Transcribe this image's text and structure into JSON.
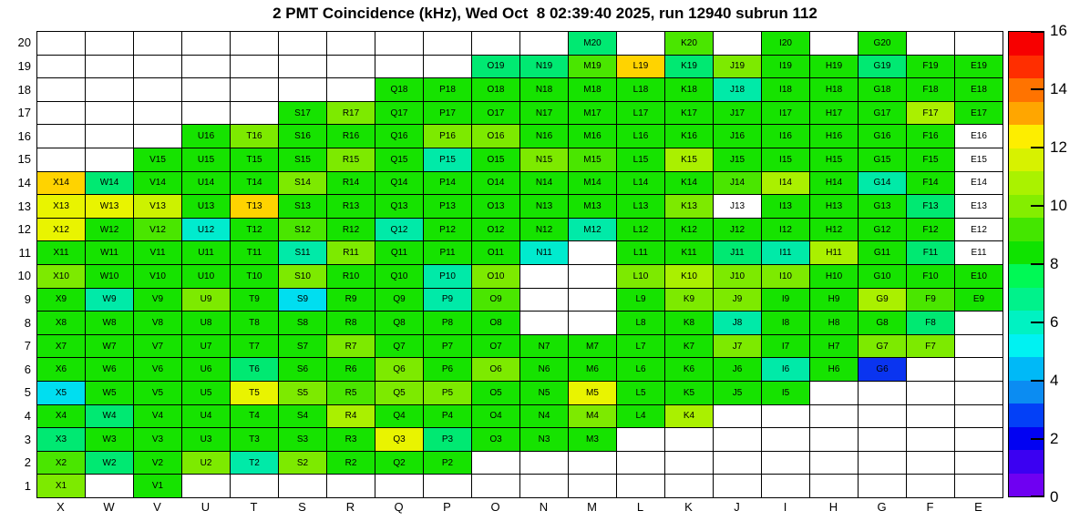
{
  "title": "2 PMT Coincidence (kHz), Wed Oct  8 02:39:40 2025, run 12940 subrun 112",
  "chart_data": {
    "type": "heatmap",
    "title": "2 PMT Coincidence (kHz), Wed Oct  8 02:39:40 2025, run 12940 subrun 112",
    "xlabel": "",
    "ylabel": "",
    "columns": [
      "X",
      "W",
      "V",
      "U",
      "T",
      "S",
      "R",
      "Q",
      "P",
      "O",
      "N",
      "M",
      "L",
      "K",
      "J",
      "I",
      "H",
      "G",
      "F",
      "E"
    ],
    "rows": [
      20,
      19,
      18,
      17,
      16,
      15,
      14,
      13,
      12,
      11,
      10,
      9,
      8,
      7,
      6,
      5,
      4,
      3,
      2,
      1
    ],
    "colors": {
      "g": "#16e300",
      "g2": "#4ae600",
      "yg": "#7dea00",
      "li": "#aaf000",
      "py": "#ccf200",
      "y": "#e9f400",
      "gold": "#ffd300",
      "sp": "#00e972",
      "aq": "#00eaa8",
      "aq2": "#00ebce",
      "cy": "#00def0",
      "bl": "#0a34f0",
      "z": "#ffffff"
    },
    "approx_value_kHz": {
      "g": 8.4,
      "g2": 9.2,
      "yg": 10.0,
      "li": 10.8,
      "py": 11.4,
      "y": 12.2,
      "gold": 13.0,
      "sp": 7.0,
      "aq": 6.2,
      "aq2": 5.6,
      "cy": 5.2,
      "bl": 2.8,
      "z": 0
    },
    "grid": {
      "20": {
        "M": "sp",
        "K": "g2",
        "I": "g",
        "G": "g"
      },
      "19": {
        "O": "sp",
        "N": "sp",
        "M": "g2",
        "L": "gold",
        "K": "sp",
        "J": "yg",
        "I": "g",
        "H": "g",
        "G": "sp",
        "F": "g",
        "E": "g"
      },
      "18": {
        "Q": "g",
        "P": "g",
        "O": "g",
        "N": "g",
        "M": "g",
        "L": "g",
        "K": "g",
        "J": "aq",
        "I": "g",
        "H": "g",
        "G": "g",
        "F": "g",
        "E": "g"
      },
      "17": {
        "S": "g",
        "R": "yg",
        "Q": "g",
        "P": "g",
        "O": "g",
        "N": "g",
        "M": "g",
        "L": "g",
        "K": "g",
        "J": "g",
        "I": "g",
        "H": "g",
        "G": "g",
        "F": "li",
        "E": "g"
      },
      "16": {
        "U": "g",
        "T": "yg",
        "S": "g",
        "R": "g",
        "Q": "g",
        "P": "yg",
        "O": "yg",
        "N": "g",
        "M": "g",
        "L": "g",
        "K": "g",
        "J": "g",
        "I": "g",
        "H": "g",
        "G": "g",
        "F": "g",
        "E": "z"
      },
      "15": {
        "V": "g",
        "U": "g",
        "T": "g",
        "S": "g",
        "R": "yg",
        "Q": "g",
        "P": "aq",
        "O": "g",
        "N": "yg",
        "M": "g2",
        "L": "g",
        "K": "li",
        "J": "g",
        "I": "g",
        "H": "g",
        "G": "g",
        "F": "g",
        "E": "z"
      },
      "14": {
        "X": "gold",
        "W": "sp",
        "V": "g",
        "U": "g",
        "T": "g",
        "S": "yg",
        "R": "g",
        "Q": "g",
        "P": "g",
        "O": "g",
        "N": "g",
        "M": "g",
        "L": "g",
        "K": "g",
        "J": "g2",
        "I": "li",
        "H": "g",
        "G": "aq",
        "F": "g",
        "E": "z"
      },
      "13": {
        "X": "y",
        "W": "y",
        "V": "py",
        "U": "g",
        "T": "gold",
        "S": "g",
        "R": "g",
        "Q": "g",
        "P": "g",
        "O": "g",
        "N": "g",
        "M": "g",
        "L": "g",
        "K": "yg",
        "J": "z",
        "I": "g",
        "H": "g",
        "G": "g",
        "F": "sp",
        "E": "z"
      },
      "12": {
        "X": "y",
        "W": "g",
        "V": "g2",
        "U": "aq2",
        "T": "g",
        "S": "g2",
        "R": "g",
        "Q": "aq",
        "P": "g",
        "O": "g",
        "N": "g",
        "M": "aq",
        "L": "g",
        "K": "g",
        "J": "g",
        "I": "g",
        "H": "g",
        "G": "g",
        "F": "g",
        "E": "z"
      },
      "11": {
        "X": "g",
        "W": "g",
        "V": "g",
        "U": "g",
        "T": "g",
        "S": "aq",
        "R": "yg",
        "Q": "g",
        "P": "g",
        "O": "g",
        "N": "aq2",
        "L": "g",
        "K": "g",
        "J": "sp",
        "I": "aq",
        "H": "li",
        "G": "g",
        "F": "sp",
        "E": "z"
      },
      "10": {
        "X": "yg",
        "W": "g",
        "V": "g",
        "U": "g",
        "T": "g",
        "S": "yg",
        "R": "g",
        "Q": "g",
        "P": "aq",
        "O": "yg",
        "L": "yg",
        "K": "li",
        "J": "yg",
        "I": "yg",
        "H": "g",
        "G": "g",
        "F": "g",
        "E": "g"
      },
      "9": {
        "X": "g",
        "W": "aq",
        "V": "g",
        "U": "yg",
        "T": "g",
        "S": "cy",
        "R": "g",
        "Q": "g",
        "P": "aq",
        "O": "g2",
        "L": "g",
        "K": "yg",
        "J": "yg",
        "I": "g",
        "H": "g",
        "G": "li",
        "F": "g2",
        "E": "g"
      },
      "8": {
        "X": "g",
        "W": "g",
        "V": "g",
        "U": "g",
        "T": "g",
        "S": "g",
        "R": "g",
        "Q": "g",
        "P": "g",
        "O": "g",
        "L": "g",
        "K": "g",
        "J": "aq",
        "I": "g",
        "H": "g",
        "G": "g",
        "F": "sp"
      },
      "7": {
        "X": "g",
        "W": "g",
        "V": "g",
        "U": "g",
        "T": "g",
        "S": "g",
        "R": "yg",
        "Q": "g",
        "P": "g",
        "O": "g",
        "N": "g",
        "M": "g",
        "L": "g",
        "K": "g",
        "J": "yg",
        "I": "g",
        "H": "g",
        "G": "yg",
        "F": "yg"
      },
      "6": {
        "X": "g",
        "W": "g",
        "V": "g",
        "U": "g",
        "T": "sp",
        "S": "g",
        "R": "g",
        "Q": "yg",
        "P": "g",
        "O": "yg",
        "N": "g",
        "M": "g",
        "L": "g",
        "K": "g",
        "J": "g",
        "I": "aq",
        "H": "g",
        "G": "bl"
      },
      "5": {
        "X": "cy",
        "W": "g",
        "V": "g",
        "U": "g",
        "T": "y",
        "S": "yg",
        "R": "g2",
        "Q": "yg",
        "P": "yg",
        "O": "g",
        "N": "g",
        "M": "y",
        "L": "g",
        "K": "g",
        "J": "g",
        "I": "g"
      },
      "4": {
        "X": "g",
        "W": "sp",
        "V": "g",
        "U": "g",
        "T": "g",
        "S": "g",
        "R": "li",
        "Q": "g",
        "P": "g",
        "O": "g",
        "N": "g",
        "M": "yg",
        "L": "g",
        "K": "li"
      },
      "3": {
        "X": "sp",
        "W": "g",
        "V": "g",
        "U": "g",
        "T": "g",
        "S": "g",
        "R": "g",
        "Q": "y",
        "P": "sp",
        "O": "g",
        "N": "g",
        "M": "g"
      },
      "2": {
        "X": "g2",
        "W": "sp",
        "V": "g",
        "U": "yg",
        "T": "aq",
        "S": "yg",
        "R": "g",
        "Q": "g",
        "P": "g"
      },
      "1": {
        "X": "yg",
        "V": "g"
      }
    },
    "colorbar": {
      "min": 0,
      "max": 16,
      "ticks": [
        0,
        2,
        4,
        6,
        8,
        10,
        12,
        14,
        16
      ],
      "bands_bottom_to_top": [
        "#6f00f2",
        "#3b00f2",
        "#0202f2",
        "#0340f7",
        "#0b8cf2",
        "#00b9f7",
        "#00f2f2",
        "#00f2c2",
        "#00f28b",
        "#00f955",
        "#0fe300",
        "#44e600",
        "#84ee00",
        "#aaf200",
        "#d7f200",
        "#fdee00",
        "#ffa600",
        "#ff7300",
        "#ff2e00",
        "#f70000"
      ]
    },
    "layout": {
      "grid_lines": true,
      "legend_position": "right"
    }
  }
}
